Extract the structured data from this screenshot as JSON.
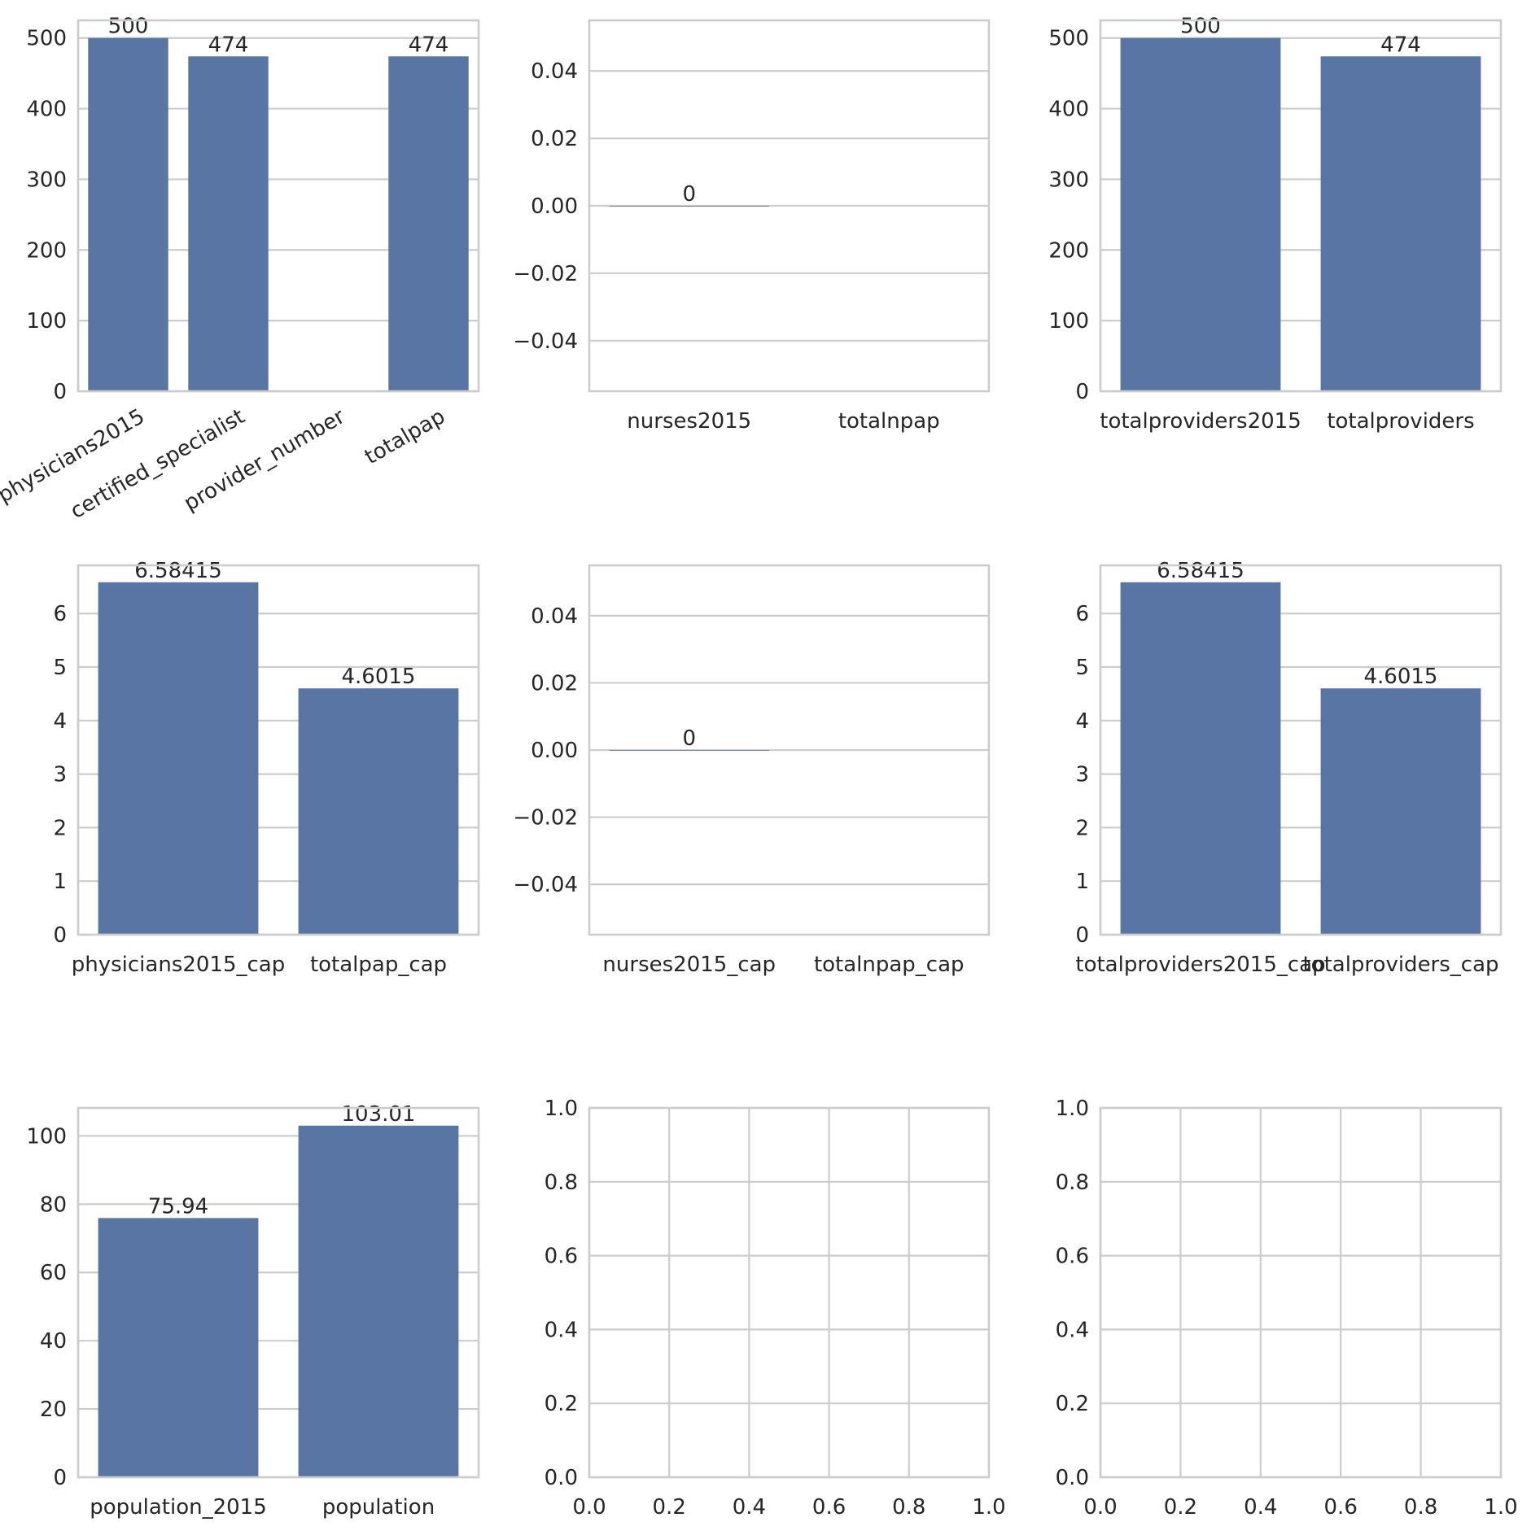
{
  "style": {
    "bar_color": "#5975a4",
    "grid_color": "#cccccc",
    "text_color": "#262626"
  },
  "chart_data": [
    {
      "type": "bar",
      "categories": [
        "physicians2015",
        "certified_specialist",
        "provider_number",
        "totalpap"
      ],
      "values": [
        500,
        474,
        null,
        474
      ],
      "data_labels": [
        "500",
        "474",
        "",
        "474"
      ],
      "ylim": [
        0,
        525
      ],
      "yticks": [
        0,
        100,
        200,
        300,
        400,
        500
      ],
      "ytick_labels": [
        "0",
        "100",
        "200",
        "300",
        "400",
        "500"
      ],
      "xtick_rotation": 30,
      "grid": true
    },
    {
      "type": "bar",
      "categories": [
        "nurses2015",
        "totalnpap"
      ],
      "values": [
        0,
        null
      ],
      "data_labels": [
        "0",
        ""
      ],
      "ylim": [
        -0.055,
        0.055
      ],
      "yticks": [
        -0.04,
        -0.02,
        0.0,
        0.02,
        0.04
      ],
      "ytick_labels": [
        "−0.04",
        "−0.02",
        "0.00",
        "0.02",
        "0.04"
      ],
      "grid": true
    },
    {
      "type": "bar",
      "categories": [
        "totalproviders2015",
        "totalproviders"
      ],
      "values": [
        500,
        474
      ],
      "data_labels": [
        "500",
        "474"
      ],
      "ylim": [
        0,
        525
      ],
      "yticks": [
        0,
        100,
        200,
        300,
        400,
        500
      ],
      "ytick_labels": [
        "0",
        "100",
        "200",
        "300",
        "400",
        "500"
      ],
      "grid": true
    },
    {
      "type": "bar",
      "categories": [
        "physicians2015_cap",
        "totalpap_cap"
      ],
      "values": [
        6.58415,
        4.6015
      ],
      "data_labels": [
        "6.58415",
        "4.6015"
      ],
      "ylim": [
        0,
        6.9
      ],
      "yticks": [
        0,
        1,
        2,
        3,
        4,
        5,
        6
      ],
      "ytick_labels": [
        "0",
        "1",
        "2",
        "3",
        "4",
        "5",
        "6"
      ],
      "grid": true
    },
    {
      "type": "bar",
      "categories": [
        "nurses2015_cap",
        "totalnpap_cap"
      ],
      "values": [
        0,
        null
      ],
      "data_labels": [
        "0",
        ""
      ],
      "ylim": [
        -0.055,
        0.055
      ],
      "yticks": [
        -0.04,
        -0.02,
        0.0,
        0.02,
        0.04
      ],
      "ytick_labels": [
        "−0.04",
        "−0.02",
        "0.00",
        "0.02",
        "0.04"
      ],
      "grid": true
    },
    {
      "type": "bar",
      "categories": [
        "totalproviders2015_cap",
        "totalproviders_cap"
      ],
      "values": [
        6.58415,
        4.6015
      ],
      "data_labels": [
        "6.58415",
        "4.6015"
      ],
      "ylim": [
        0,
        6.9
      ],
      "yticks": [
        0,
        1,
        2,
        3,
        4,
        5,
        6
      ],
      "ytick_labels": [
        "0",
        "1",
        "2",
        "3",
        "4",
        "5",
        "6"
      ],
      "grid": true
    },
    {
      "type": "bar",
      "categories": [
        "population_2015",
        "population"
      ],
      "values": [
        75.94,
        103.01
      ],
      "data_labels": [
        "75.94",
        "103.01"
      ],
      "ylim": [
        0,
        108.2
      ],
      "yticks": [
        0,
        20,
        40,
        60,
        80,
        100
      ],
      "ytick_labels": [
        "0",
        "20",
        "40",
        "60",
        "80",
        "100"
      ],
      "grid": true
    },
    {
      "type": "empty",
      "xlim": [
        0,
        1
      ],
      "ylim": [
        0,
        1
      ],
      "xticks": [
        0,
        0.2,
        0.4,
        0.6,
        0.8,
        1.0
      ],
      "xtick_labels": [
        "0.0",
        "0.2",
        "0.4",
        "0.6",
        "0.8",
        "1.0"
      ],
      "yticks": [
        0,
        0.2,
        0.4,
        0.6,
        0.8,
        1.0
      ],
      "ytick_labels": [
        "0.0",
        "0.2",
        "0.4",
        "0.6",
        "0.8",
        "1.0"
      ],
      "grid": true
    },
    {
      "type": "empty",
      "xlim": [
        0,
        1
      ],
      "ylim": [
        0,
        1
      ],
      "xticks": [
        0,
        0.2,
        0.4,
        0.6,
        0.8,
        1.0
      ],
      "xtick_labels": [
        "0.0",
        "0.2",
        "0.4",
        "0.6",
        "0.8",
        "1.0"
      ],
      "yticks": [
        0,
        0.2,
        0.4,
        0.6,
        0.8,
        1.0
      ],
      "ytick_labels": [
        "0.0",
        "0.2",
        "0.4",
        "0.6",
        "0.8",
        "1.0"
      ],
      "grid": true
    }
  ]
}
